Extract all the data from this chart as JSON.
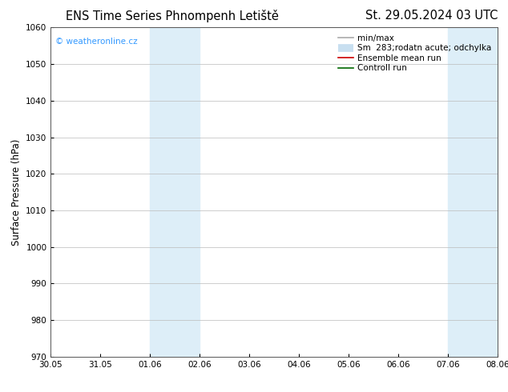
{
  "title_left": "ENS Time Series Phnompenh Letiště",
  "title_right": "St. 29.05.2024 03 UTC",
  "ylabel": "Surface Pressure (hPa)",
  "ylim": [
    970,
    1060
  ],
  "yticks": [
    970,
    980,
    990,
    1000,
    1010,
    1020,
    1030,
    1040,
    1050,
    1060
  ],
  "x_tick_labels": [
    "30.05",
    "31.05",
    "01.06",
    "02.06",
    "03.06",
    "04.06",
    "05.06",
    "06.06",
    "07.06",
    "08.06"
  ],
  "x_tick_positions": [
    0,
    1,
    2,
    3,
    4,
    5,
    6,
    7,
    8,
    9
  ],
  "xlim": [
    0,
    9
  ],
  "shaded_regions": [
    {
      "x_start": 2,
      "x_end": 3,
      "color": "#ddeef8"
    },
    {
      "x_start": 8,
      "x_end": 9,
      "color": "#ddeef8"
    }
  ],
  "watermark_text": "© weatheronline.cz",
  "watermark_color": "#3399ff",
  "legend_entries": [
    {
      "label": "min/max",
      "color": "#aaaaaa",
      "lw": 1.2
    },
    {
      "label": "Sm  283;rodatn acute; odchylka",
      "color": "#c8dff0",
      "lw": 7,
      "is_band": true
    },
    {
      "label": "Ensemble mean run",
      "color": "#cc0000",
      "lw": 1.2
    },
    {
      "label": "Controll run",
      "color": "#006600",
      "lw": 1.2
    }
  ],
  "bg_color": "#ffffff",
  "grid_color": "#bbbbbb",
  "title_fontsize": 10.5,
  "tick_fontsize": 7.5,
  "ylabel_fontsize": 8.5,
  "legend_fontsize": 7.5
}
